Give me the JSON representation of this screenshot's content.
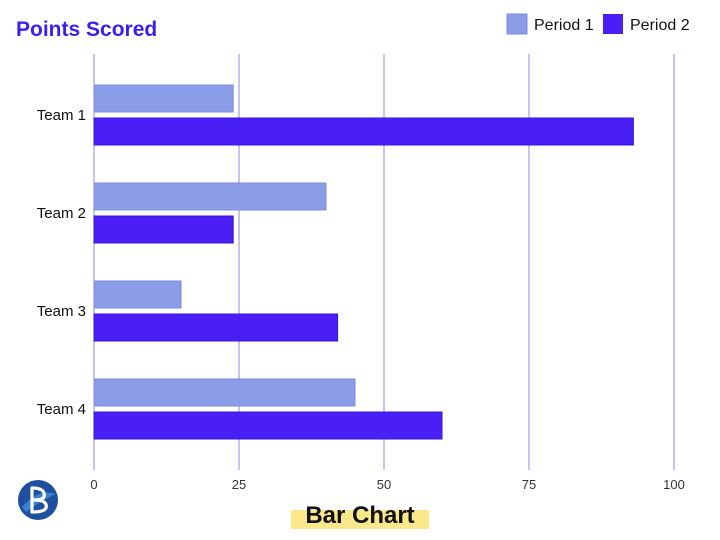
{
  "chart_data": {
    "type": "bar",
    "orientation": "horizontal",
    "title": "Points Scored",
    "categories": [
      "Team 1",
      "Team 2",
      "Team 3",
      "Team 4"
    ],
    "series": [
      {
        "name": "Period 1",
        "values": [
          24,
          40,
          15,
          45
        ]
      },
      {
        "name": "Period 2",
        "values": [
          93,
          24,
          42,
          60
        ]
      }
    ],
    "xlim": [
      0,
      100
    ],
    "x_ticks": [
      "0",
      "25",
      "50",
      "75",
      "100"
    ],
    "grid": "vertical",
    "legend": "top-right",
    "caption": "Bar Chart"
  },
  "colors": {
    "title": "#3a1ff0",
    "period1": "#8b9de8",
    "period2": "#4a1ff5",
    "grid": "#8f88e4",
    "caption_highlight": "#fbe88a",
    "logo_dark": "#1f4f9e",
    "logo_light": "#3f87d6"
  },
  "logo": {
    "icon": "b-logo-icon"
  }
}
